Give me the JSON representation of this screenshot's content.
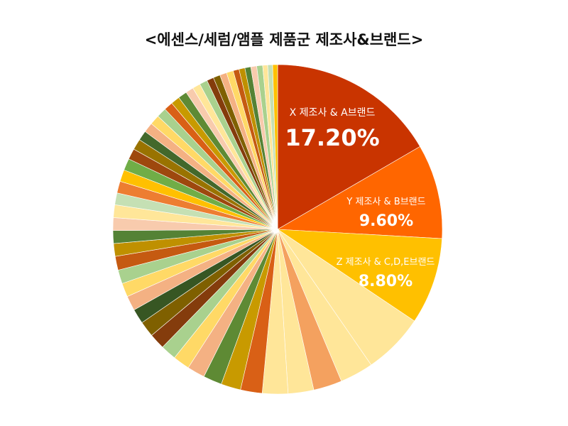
{
  "chart_data": {
    "type": "pie",
    "title": "<에센스/세럼/앰플 제품군 제조사&브랜드>",
    "series": [
      {
        "slices": [
          {
            "name": "X 제조사 & A브랜드",
            "value": 17.2,
            "color": "#C93400",
            "show_label": true,
            "pct_label": "17.20%"
          },
          {
            "name": "Y 제조사 & B브랜드",
            "value": 9.6,
            "color": "#FF6600",
            "show_label": true,
            "pct_label": "9.60%"
          },
          {
            "name": "Z 제조사 & C,D,E브랜드",
            "value": 8.8,
            "color": "#FFC000",
            "show_label": true,
            "pct_label": "8.80%"
          },
          {
            "name": "",
            "value": 6.2,
            "color": "#FFE699"
          },
          {
            "name": "",
            "value": 3.4,
            "color": "#FFE699"
          },
          {
            "name": "",
            "value": 2.9,
            "color": "#F4A15F"
          },
          {
            "name": "",
            "value": 2.6,
            "color": "#FFE699"
          },
          {
            "name": "",
            "value": 2.6,
            "color": "#FFE699"
          },
          {
            "name": "",
            "value": 2.2,
            "color": "#D96016"
          },
          {
            "name": "",
            "value": 2.0,
            "color": "#C89A00"
          },
          {
            "name": "",
            "value": 1.9,
            "color": "#5E8A34"
          },
          {
            "name": "",
            "value": 1.8,
            "color": "#F4B183"
          },
          {
            "name": "",
            "value": 1.7,
            "color": "#FFD966"
          },
          {
            "name": "",
            "value": 1.6,
            "color": "#A9D18E"
          },
          {
            "name": "",
            "value": 1.6,
            "color": "#843C0C"
          },
          {
            "name": "",
            "value": 1.6,
            "color": "#7F6000"
          },
          {
            "name": "",
            "value": 1.5,
            "color": "#375623"
          },
          {
            "name": "",
            "value": 1.5,
            "color": "#F4B183"
          },
          {
            "name": "",
            "value": 1.4,
            "color": "#FFD966"
          },
          {
            "name": "",
            "value": 1.4,
            "color": "#A9D18E"
          },
          {
            "name": "",
            "value": 1.4,
            "color": "#C55A11"
          },
          {
            "name": "",
            "value": 1.3,
            "color": "#BF9000"
          },
          {
            "name": "",
            "value": 1.3,
            "color": "#548235"
          },
          {
            "name": "",
            "value": 1.3,
            "color": "#F8CBAD"
          },
          {
            "name": "",
            "value": 1.3,
            "color": "#FFE699"
          },
          {
            "name": "",
            "value": 1.2,
            "color": "#C5E0B4"
          },
          {
            "name": "",
            "value": 1.2,
            "color": "#ED7D31"
          },
          {
            "name": "",
            "value": 1.2,
            "color": "#FFC000"
          },
          {
            "name": "",
            "value": 1.2,
            "color": "#70AD47"
          },
          {
            "name": "",
            "value": 1.1,
            "color": "#9E480E"
          },
          {
            "name": "",
            "value": 1.1,
            "color": "#997300"
          },
          {
            "name": "",
            "value": 1.0,
            "color": "#43682B"
          },
          {
            "name": "",
            "value": 1.0,
            "color": "#F4B183"
          },
          {
            "name": "",
            "value": 1.0,
            "color": "#FFD966"
          },
          {
            "name": "",
            "value": 1.0,
            "color": "#A9D18E"
          },
          {
            "name": "",
            "value": 0.9,
            "color": "#D96016"
          },
          {
            "name": "",
            "value": 0.9,
            "color": "#C89A00"
          },
          {
            "name": "",
            "value": 0.9,
            "color": "#5E8A34"
          },
          {
            "name": "",
            "value": 0.8,
            "color": "#F8CBAD"
          },
          {
            "name": "",
            "value": 0.8,
            "color": "#FFE699"
          },
          {
            "name": "",
            "value": 0.8,
            "color": "#A9D18E"
          },
          {
            "name": "",
            "value": 0.7,
            "color": "#843C0C"
          },
          {
            "name": "",
            "value": 0.7,
            "color": "#7F6000"
          },
          {
            "name": "",
            "value": 0.7,
            "color": "#F4B183"
          },
          {
            "name": "",
            "value": 0.7,
            "color": "#FFD966"
          },
          {
            "name": "",
            "value": 0.6,
            "color": "#C55A11"
          },
          {
            "name": "",
            "value": 0.6,
            "color": "#BF9000"
          },
          {
            "name": "",
            "value": 0.6,
            "color": "#548235"
          },
          {
            "name": "",
            "value": 0.6,
            "color": "#F8CBAD"
          },
          {
            "name": "",
            "value": 0.6,
            "color": "#A9D18E"
          },
          {
            "name": "",
            "value": 0.5,
            "color": "#FFE699"
          },
          {
            "name": "",
            "value": 0.5,
            "color": "#C5E0B4"
          },
          {
            "name": "",
            "value": 0.5,
            "color": "#FFC000"
          }
        ]
      }
    ]
  }
}
